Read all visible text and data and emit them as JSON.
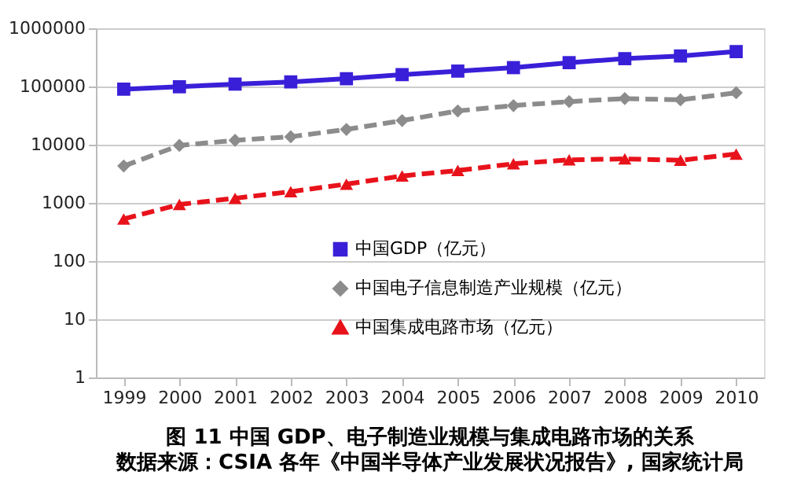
{
  "chart_data": {
    "type": "line",
    "title": "图 11    中国 GDP、电子制造业规模与集成电路市场的关系",
    "annotations": [
      "数据来源：CSIA 各年《中国半导体产业发展状况报告》, 国家统计局"
    ],
    "categories": [
      "1999",
      "2000",
      "2001",
      "2002",
      "2003",
      "2004",
      "2005",
      "2006",
      "2007",
      "2008",
      "2009",
      "2010"
    ],
    "series": [
      {
        "name": "中国GDP（亿元）",
        "color": "#3a1fd8",
        "marker": "square",
        "line_style": "solid",
        "values": [
          90000,
          99000,
          110000,
          120000,
          136000,
          160000,
          184000,
          211000,
          257000,
          301000,
          335000,
          398000
        ]
      },
      {
        "name": "中国电子信息制造产业规模（亿元）",
        "color": "#8c8c8c",
        "marker": "diamond",
        "line_style": "dashed",
        "values": [
          4300,
          9700,
          11900,
          13700,
          18300,
          26000,
          38000,
          47000,
          55000,
          62000,
          59000,
          78000
        ]
      },
      {
        "name": "中国集成电路市场（亿元）",
        "color": "#e8121b",
        "marker": "triangle",
        "line_style": "dashed",
        "values": [
          530,
          940,
          1200,
          1560,
          2100,
          2900,
          3600,
          4700,
          5500,
          5700,
          5400,
          6900
        ]
      }
    ],
    "log": "y",
    "ylim": [
      1,
      1000000
    ],
    "yticks": [
      1,
      10,
      100,
      1000,
      10000,
      100000,
      1000000
    ],
    "grid": "y",
    "legend": "bottom"
  }
}
